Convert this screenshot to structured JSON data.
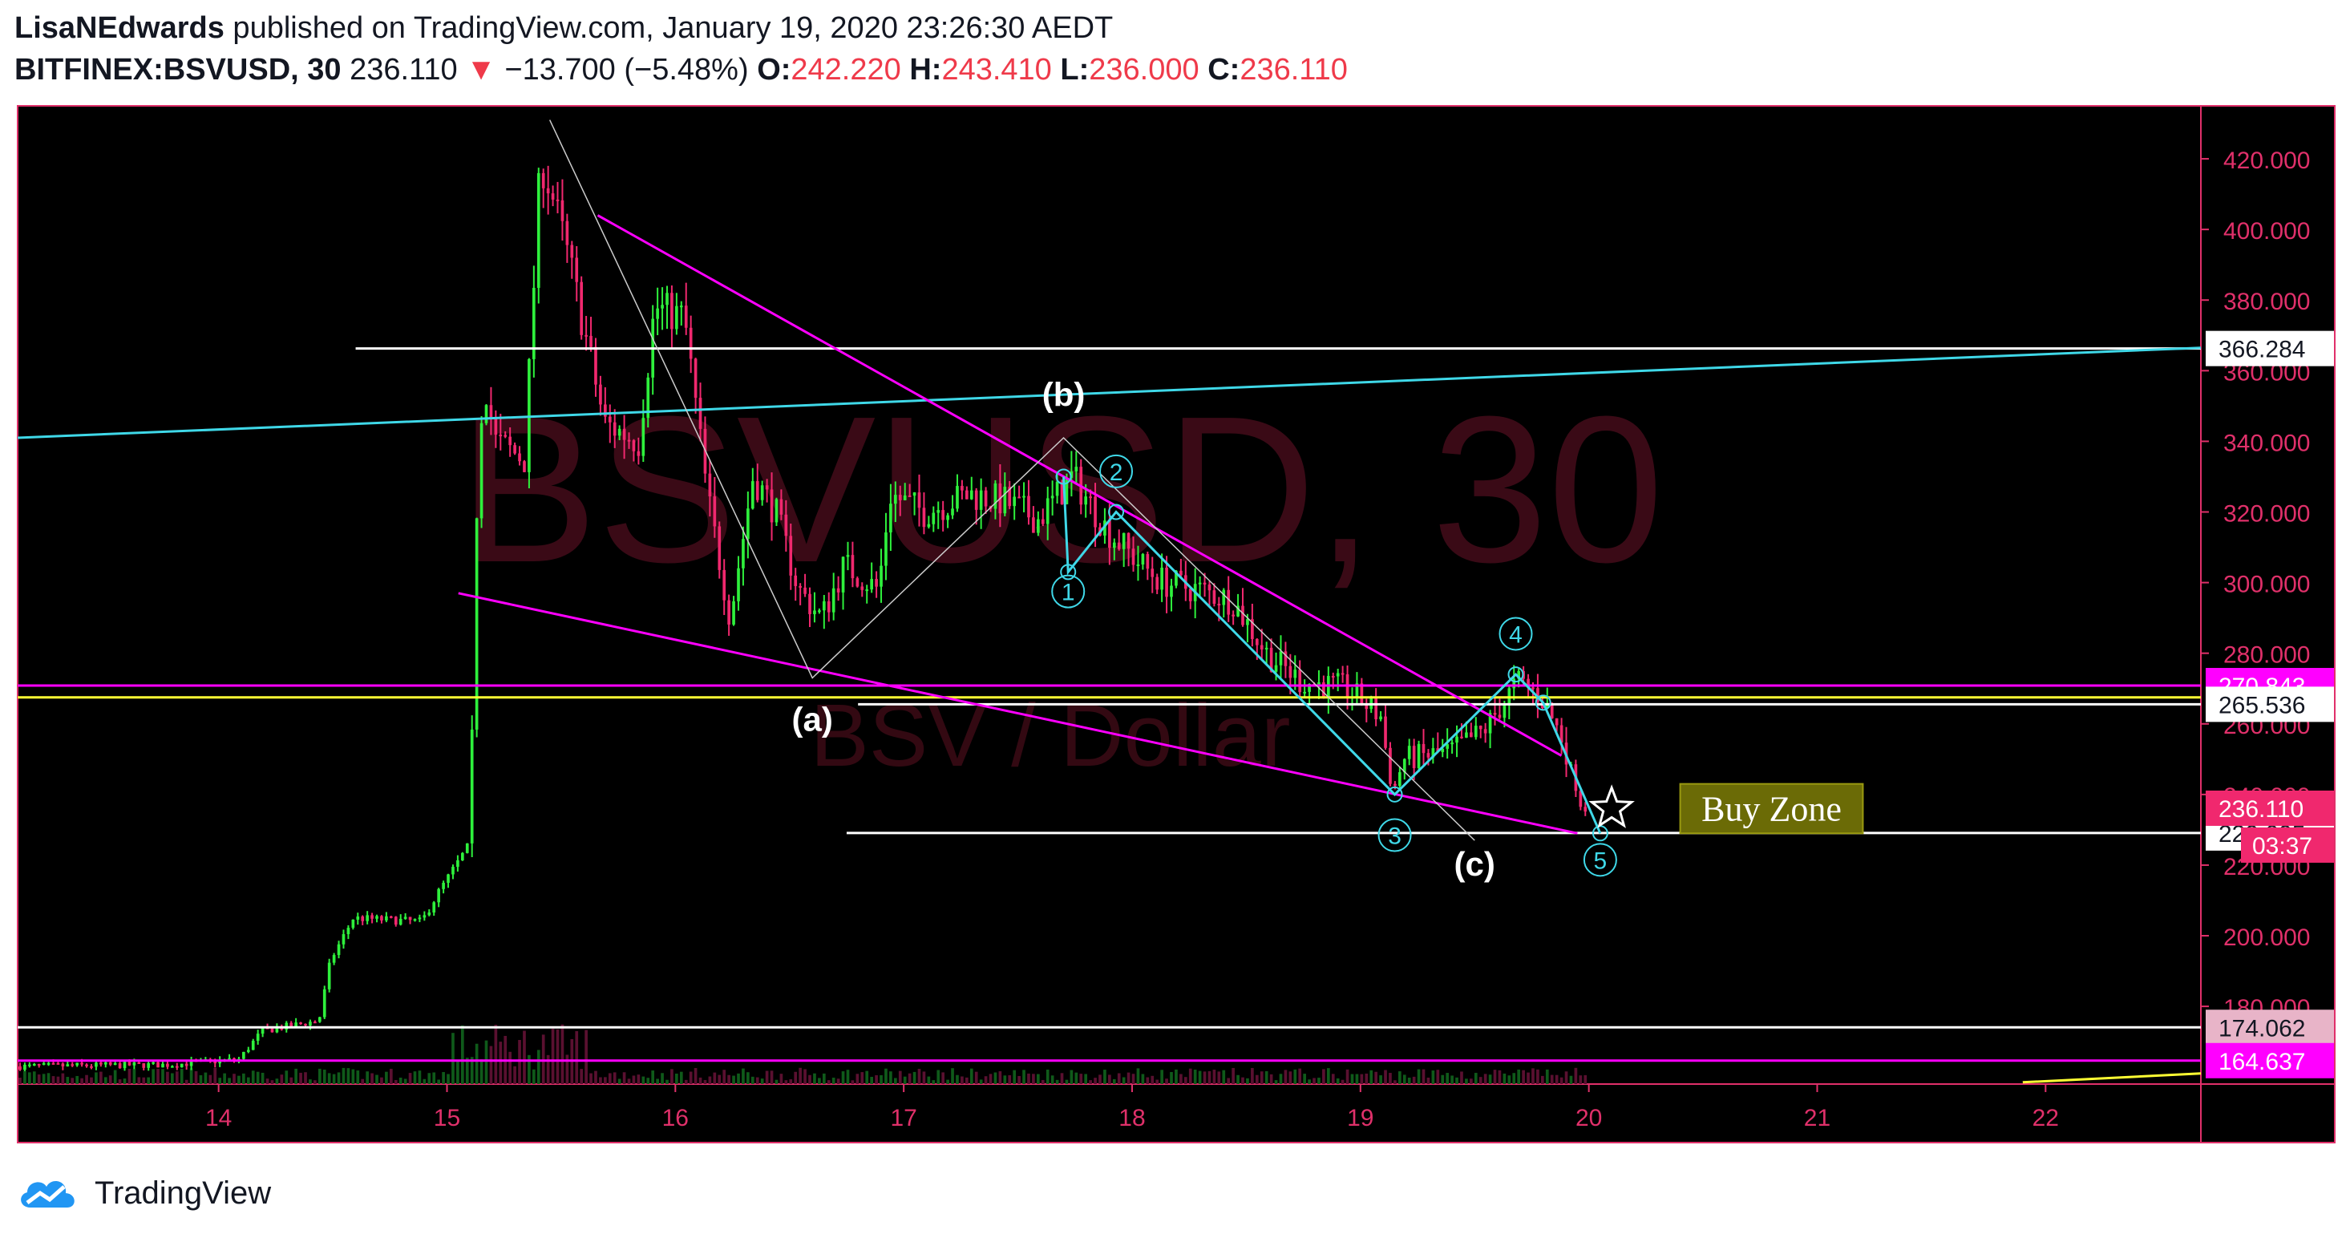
{
  "header": {
    "author": "LisaNEdwards",
    "published_text": " published on TradingView.com, January 19, 2020 23:26:30 AEDT",
    "symbol": "BITFINEX:BSVUSD, 30",
    "last": "236.110",
    "down_arrow": "▼",
    "change": "−13.700 (−5.48%)",
    "o_label": "O:",
    "o_value": "242.220",
    "h_label": "H:",
    "h_value": "243.410",
    "l_label": "L:",
    "l_value": "236.000",
    "c_label": "C:",
    "c_value": "236.110"
  },
  "footer": {
    "brand": "TradingView",
    "logo_icon": "tradingview-cloud-icon"
  },
  "colors": {
    "background": "#000000",
    "up": "#2ef03c",
    "down": "#f0286e",
    "axis_text": "#e0306a",
    "magenta": "#ff00ff",
    "cyan": "#3fd8e8",
    "yellow": "#ffff33",
    "white": "#ffffff"
  },
  "chart_data": {
    "type": "candlestick",
    "symbol": "BITFINEX:BSVUSD",
    "interval": "30",
    "watermark": "BSVUSD, 30",
    "watermark_sub": "BSV / Dollar",
    "ylim": [
      158,
      435
    ],
    "y_ticks": [
      "420.000",
      "400.000",
      "380.000",
      "360.000",
      "340.000",
      "320.000",
      "300.000",
      "280.000",
      "260.000",
      "240.000",
      "220.000",
      "200.000",
      "180.000"
    ],
    "x_ticks": [
      "14",
      "15",
      "16",
      "17",
      "18",
      "19",
      "20",
      "21",
      "22"
    ],
    "xlim": [
      13.12,
      22.68
    ],
    "price_path": [
      [
        13.12,
        163
      ],
      [
        13.8,
        163.5
      ],
      [
        14.1,
        165
      ],
      [
        14.2,
        173
      ],
      [
        14.45,
        176
      ],
      [
        14.5,
        193
      ],
      [
        14.6,
        205
      ],
      [
        14.9,
        204
      ],
      [
        14.97,
        212
      ],
      [
        15.1,
        225
      ],
      [
        15.12,
        255
      ],
      [
        15.14,
        320
      ],
      [
        15.17,
        360
      ],
      [
        15.22,
        340
      ],
      [
        15.35,
        335
      ],
      [
        15.42,
        420
      ],
      [
        15.47,
        410
      ],
      [
        15.55,
        390
      ],
      [
        15.7,
        345
      ],
      [
        15.85,
        340
      ],
      [
        15.92,
        378
      ],
      [
        16.05,
        375
      ],
      [
        16.15,
        325
      ],
      [
        16.25,
        290
      ],
      [
        16.35,
        330
      ],
      [
        16.45,
        320
      ],
      [
        16.55,
        298
      ],
      [
        16.65,
        290
      ],
      [
        16.75,
        305
      ],
      [
        16.9,
        298
      ],
      [
        16.95,
        325
      ],
      [
        17.1,
        320
      ],
      [
        17.3,
        325
      ],
      [
        17.45,
        323
      ],
      [
        17.6,
        318
      ],
      [
        17.75,
        330
      ],
      [
        17.9,
        315
      ],
      [
        18.05,
        305
      ],
      [
        18.15,
        300
      ],
      [
        18.3,
        298
      ],
      [
        18.45,
        295
      ],
      [
        18.6,
        280
      ],
      [
        18.75,
        272
      ],
      [
        18.95,
        270
      ],
      [
        19.1,
        262
      ],
      [
        19.15,
        240
      ],
      [
        19.2,
        250
      ],
      [
        19.4,
        252
      ],
      [
        19.55,
        258
      ],
      [
        19.7,
        272
      ],
      [
        19.8,
        268
      ],
      [
        19.9,
        255
      ],
      [
        19.98,
        236
      ]
    ],
    "volume_ylim": [
      0,
      100
    ],
    "horizontal_lines": [
      {
        "price": 366.284,
        "label": "366.284",
        "color": "#ffffff",
        "x_start": 14.6
      },
      {
        "price": 270.843,
        "label": "270.843",
        "color": "#ff00ff",
        "x_start": 13.12
      },
      {
        "price": 265.536,
        "label": "265.536",
        "color": "#ffffff",
        "x_start": 16.8
      },
      {
        "price": 267.5,
        "label": "",
        "color": "#ffff33",
        "x_start": 13.12
      },
      {
        "price": 229.095,
        "label": "229.095",
        "color": "#ffffff",
        "x_start": 16.75
      },
      {
        "price": 174.062,
        "label": "174.062",
        "color": "#ffffff",
        "x_start": 13.12
      },
      {
        "price": 164.637,
        "label": "164.637",
        "color": "#ff00ff",
        "x_start": 13.12
      }
    ],
    "last_price_label": "236.110",
    "countdown_label": "03:37",
    "trend_lines": [
      {
        "color": "#3fd8e8",
        "from": [
          13.12,
          341
        ],
        "to": [
          22.68,
          366.5
        ]
      },
      {
        "color": "#ff00ff",
        "from": [
          15.66,
          404
        ],
        "to": [
          19.88,
          251
        ]
      },
      {
        "color": "#ff00ff",
        "from": [
          15.05,
          297
        ],
        "to": [
          19.95,
          229
        ]
      },
      {
        "color": "#ffff33",
        "from": [
          21.9,
          158.5
        ],
        "to": [
          22.68,
          161
        ]
      }
    ],
    "abc_wave": [
      [
        15.45,
        431
      ],
      [
        16.6,
        273
      ],
      [
        17.7,
        341
      ],
      [
        19.5,
        227
      ]
    ],
    "abc_labels": [
      {
        "text": "(a)",
        "x": 16.6,
        "price": 258
      },
      {
        "text": "(b)",
        "x": 17.7,
        "price": 350
      },
      {
        "text": "(c)",
        "x": 19.5,
        "price": 217
      }
    ],
    "impulse_wave": [
      [
        17.7,
        330
      ],
      [
        17.72,
        303
      ],
      [
        17.93,
        320
      ],
      [
        19.15,
        240
      ],
      [
        19.68,
        274
      ],
      [
        19.8,
        266
      ],
      [
        20.05,
        229
      ]
    ],
    "impulse_labels": [
      {
        "text": "1",
        "x": 17.72,
        "price": 295
      },
      {
        "text": "2",
        "x": 17.93,
        "price": 329
      },
      {
        "text": "3",
        "x": 19.15,
        "price": 226
      },
      {
        "text": "4",
        "x": 19.68,
        "price": 283
      },
      {
        "text": "5",
        "x": 20.05,
        "price": 219
      }
    ],
    "buy_zone": {
      "text": "Buy Zone",
      "x1": 20.4,
      "x2": 21.2,
      "price_top": 243,
      "price_bottom": 229
    },
    "star_marker": {
      "x": 20.1,
      "price": 236
    }
  }
}
